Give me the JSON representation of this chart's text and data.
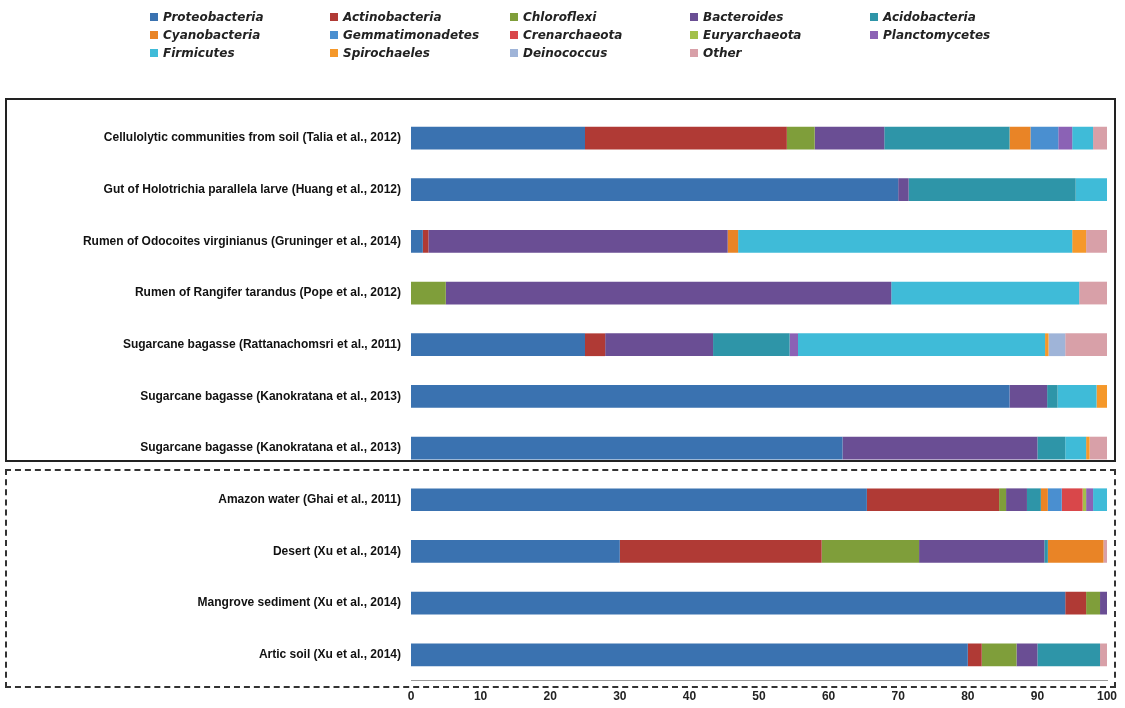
{
  "chart_data": {
    "type": "bar",
    "orientation": "horizontal",
    "stacked": true,
    "legend": "top",
    "grid": false,
    "categories": [
      "Cellulolytic communities from soil (Talia et al., 2012)",
      "Gut of Holotrichia parallela larve (Huang et al., 2012)",
      "Rumen of Odocoites virginianus (Gruninger et al., 2014)",
      "Rumen of Rangifer tarandus (Pope et al., 2012)",
      "Sugarcane bagasse (Rattanachomsri et al., 2011)",
      "Sugarcane bagasse (Kanokratana et al., 2013)",
      "Sugarcane bagasse (Kanokratana et al., 2013)",
      "Amazon water (Ghai et al., 2011)",
      "Desert (Xu et al., 2014)",
      "Mangrove sediment (Xu et al., 2014)",
      "Artic soil (Xu et al., 2014)"
    ],
    "xlim": [
      0,
      100
    ],
    "xticks": [
      0,
      10,
      20,
      30,
      40,
      50,
      60,
      70,
      80,
      90,
      100
    ],
    "series": [
      {
        "name": "Proteobacteria",
        "color": "#3a72b0",
        "values": [
          25,
          70,
          1.7,
          null,
          25,
          86,
          62,
          65.5,
          30,
          94,
          80
        ]
      },
      {
        "name": "Actinobacteria",
        "color": "#b03a35",
        "values": [
          29,
          null,
          0.8,
          null,
          2.9,
          null,
          null,
          19,
          29,
          3,
          2
        ]
      },
      {
        "name": "Chloroflexi",
        "color": "#7f9e3a",
        "values": [
          4,
          null,
          null,
          5,
          null,
          null,
          null,
          1,
          14,
          2,
          5
        ]
      },
      {
        "name": "Bacteroides",
        "color": "#6a4e94",
        "values": [
          10,
          1.5,
          43,
          64,
          15.5,
          5.4,
          28,
          3,
          18,
          1,
          3
        ]
      },
      {
        "name": "Acidobacteria",
        "color": "#2e95a8",
        "values": [
          18,
          24,
          null,
          null,
          11,
          1.5,
          4,
          2,
          0.5,
          null,
          9
        ]
      },
      {
        "name": "Cyanobacteria",
        "color": "#e98426",
        "values": [
          3,
          null,
          1.5,
          null,
          null,
          null,
          null,
          1,
          8,
          null,
          null
        ]
      },
      {
        "name": "Gemmatimonadetes",
        "color": "#4a8fd0",
        "values": [
          4,
          null,
          null,
          null,
          null,
          null,
          null,
          2,
          null,
          null,
          null
        ]
      },
      {
        "name": "Crenarchaeota",
        "color": "#d9474a",
        "values": [
          null,
          null,
          null,
          null,
          null,
          null,
          null,
          3,
          null,
          null,
          null
        ]
      },
      {
        "name": "Euryarchaeota",
        "color": "#a3c04a",
        "values": [
          null,
          null,
          null,
          null,
          null,
          null,
          null,
          0.5,
          null,
          null,
          null
        ]
      },
      {
        "name": "Planctomycetes",
        "color": "#8b62b5",
        "values": [
          2,
          null,
          null,
          null,
          1.2,
          null,
          null,
          1,
          null,
          null,
          null
        ]
      },
      {
        "name": "Firmicutes",
        "color": "#3fbbd8",
        "values": [
          3,
          4.5,
          48,
          27,
          35.5,
          5.6,
          3,
          2,
          null,
          null,
          null
        ]
      },
      {
        "name": "Spirochaeles",
        "color": "#f5982a",
        "values": [
          null,
          null,
          2,
          null,
          0.5,
          1.5,
          0.5,
          null,
          null,
          null,
          null
        ]
      },
      {
        "name": "Deinococcus",
        "color": "#9fb4d8",
        "values": [
          null,
          null,
          null,
          null,
          2.4,
          null,
          null,
          null,
          null,
          null,
          null
        ]
      },
      {
        "name": "Other",
        "color": "#d8a0a8",
        "values": [
          2,
          null,
          3,
          4,
          6,
          null,
          2.5,
          null,
          0.5,
          null,
          1
        ]
      }
    ]
  }
}
